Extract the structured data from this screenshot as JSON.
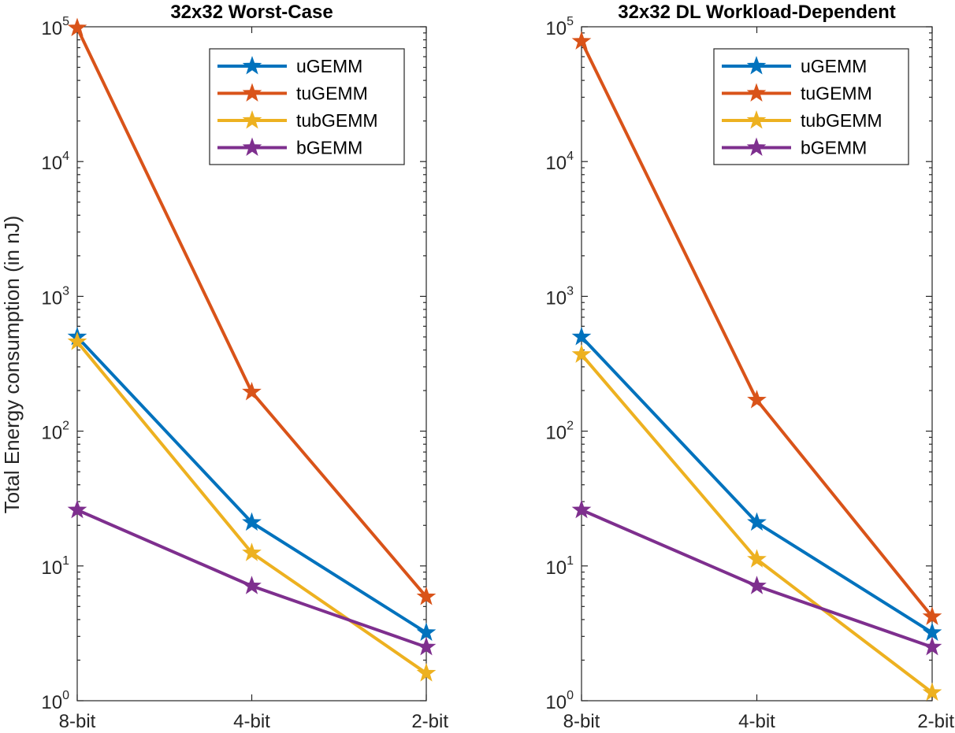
{
  "chart_data": [
    {
      "type": "line",
      "title": "32x32 Worst-Case",
      "ylabel": "Total Energy consumption (in nJ)",
      "xlabel": "",
      "categories": [
        "8-bit",
        "4-bit",
        "2-bit"
      ],
      "yscale": "log",
      "ylim": [
        1,
        100000
      ],
      "yticks": [
        1,
        10,
        100,
        1000,
        10000,
        100000
      ],
      "ytick_labels": [
        {
          "base": "10",
          "exp": "0"
        },
        {
          "base": "10",
          "exp": "1"
        },
        {
          "base": "10",
          "exp": "2"
        },
        {
          "base": "10",
          "exp": "3"
        },
        {
          "base": "10",
          "exp": "4"
        },
        {
          "base": "10",
          "exp": "5"
        }
      ],
      "grid": false,
      "legend": "top-right",
      "marker": "star",
      "series": [
        {
          "name": "uGEMM",
          "color": "#0072BD",
          "values": [
            500,
            21,
            3.2
          ]
        },
        {
          "name": "tuGEMM",
          "color": "#D95319",
          "values": [
            98000,
            195,
            5.9
          ]
        },
        {
          "name": "tubGEMM",
          "color": "#EDB120",
          "values": [
            460,
            12.5,
            1.6
          ]
        },
        {
          "name": "bGEMM",
          "color": "#7E2F8E",
          "values": [
            26,
            7.1,
            2.5
          ]
        }
      ]
    },
    {
      "type": "line",
      "title": "32x32 DL Workload-Dependent",
      "ylabel": "",
      "xlabel": "",
      "categories": [
        "8-bit",
        "4-bit",
        "2-bit"
      ],
      "yscale": "log",
      "ylim": [
        1,
        100000
      ],
      "yticks": [
        1,
        10,
        100,
        1000,
        10000,
        100000
      ],
      "ytick_labels": [
        {
          "base": "10",
          "exp": "0"
        },
        {
          "base": "10",
          "exp": "1"
        },
        {
          "base": "10",
          "exp": "2"
        },
        {
          "base": "10",
          "exp": "3"
        },
        {
          "base": "10",
          "exp": "4"
        },
        {
          "base": "10",
          "exp": "5"
        }
      ],
      "grid": false,
      "legend": "top-right",
      "marker": "star",
      "series": [
        {
          "name": "uGEMM",
          "color": "#0072BD",
          "values": [
            500,
            21,
            3.2
          ]
        },
        {
          "name": "tuGEMM",
          "color": "#D95319",
          "values": [
            78000,
            170,
            4.2
          ]
        },
        {
          "name": "tubGEMM",
          "color": "#EDB120",
          "values": [
            370,
            11.2,
            1.15
          ]
        },
        {
          "name": "bGEMM",
          "color": "#7E2F8E",
          "values": [
            26,
            7.1,
            2.5
          ]
        }
      ]
    }
  ]
}
